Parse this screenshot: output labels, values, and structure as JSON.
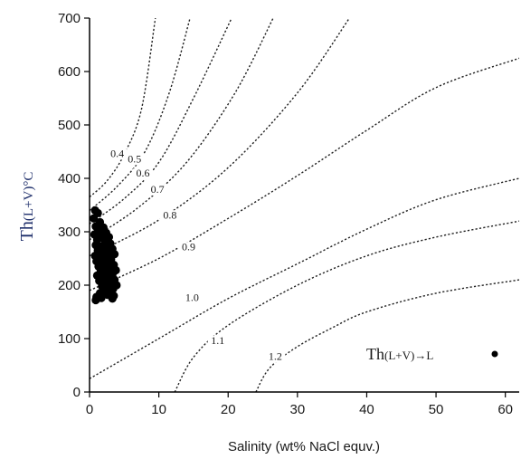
{
  "chart_data": {
    "type": "scatter",
    "xlabel": "Salinity (wt% NaCl equv.)",
    "ylabel": "Th(L+V)°C",
    "ylabel_parts": {
      "main": "Th",
      "sub": "(L+V)",
      "unit": "°C"
    },
    "xlim": [
      0,
      62
    ],
    "ylim": [
      0,
      700
    ],
    "x_ticks": [
      0,
      10,
      20,
      30,
      40,
      50,
      60
    ],
    "y_ticks": [
      0,
      100,
      200,
      300,
      400,
      500,
      600,
      700
    ],
    "grid": false,
    "legend": {
      "position": "bottom-right",
      "main": "Th",
      "sub": "(L+V)→L",
      "marker": "filled-circle"
    },
    "series": [
      {
        "points": [
          [
            0.8,
            340
          ],
          [
            1.2,
            335
          ],
          [
            0.6,
            325
          ],
          [
            1.5,
            318
          ],
          [
            0.9,
            310
          ],
          [
            2.0,
            308
          ],
          [
            1.3,
            300
          ],
          [
            2.4,
            298
          ],
          [
            0.7,
            295
          ],
          [
            1.8,
            292
          ],
          [
            2.8,
            290
          ],
          [
            1.1,
            285
          ],
          [
            2.2,
            282
          ],
          [
            3.0,
            278
          ],
          [
            0.9,
            275
          ],
          [
            1.6,
            272
          ],
          [
            2.6,
            270
          ],
          [
            3.3,
            268
          ],
          [
            1.2,
            265
          ],
          [
            2.0,
            262
          ],
          [
            2.9,
            260
          ],
          [
            3.6,
            258
          ],
          [
            0.8,
            255
          ],
          [
            1.5,
            252
          ],
          [
            2.4,
            250
          ],
          [
            3.1,
            248
          ],
          [
            1.0,
            245
          ],
          [
            1.9,
            242
          ],
          [
            2.7,
            240
          ],
          [
            3.5,
            238
          ],
          [
            1.3,
            235
          ],
          [
            2.2,
            232
          ],
          [
            3.0,
            230
          ],
          [
            3.8,
            228
          ],
          [
            1.6,
            225
          ],
          [
            2.5,
            222
          ],
          [
            3.3,
            220
          ],
          [
            1.1,
            218
          ],
          [
            2.0,
            215
          ],
          [
            2.8,
            212
          ],
          [
            3.6,
            210
          ],
          [
            1.4,
            208
          ],
          [
            2.3,
            205
          ],
          [
            3.1,
            202
          ],
          [
            3.9,
            200
          ],
          [
            1.8,
            198
          ],
          [
            2.6,
            195
          ],
          [
            3.4,
            193
          ],
          [
            2.1,
            190
          ],
          [
            3.0,
            188
          ],
          [
            1.5,
            185
          ],
          [
            2.6,
            182
          ],
          [
            3.5,
            180
          ],
          [
            1.0,
            178
          ],
          [
            1.7,
            176
          ],
          [
            3.3,
            175
          ],
          [
            0.9,
            172
          ]
        ]
      }
    ],
    "density_curves": [
      {
        "label": "0.4",
        "points": [
          [
            0,
            365
          ],
          [
            2.5,
            395
          ],
          [
            5,
            445
          ],
          [
            7.5,
            530
          ],
          [
            9.5,
            700
          ]
        ]
      },
      {
        "label": "0.5",
        "points": [
          [
            0,
            340
          ],
          [
            4,
            385
          ],
          [
            8,
            450
          ],
          [
            11.5,
            560
          ],
          [
            14.5,
            700
          ]
        ]
      },
      {
        "label": "0.6",
        "points": [
          [
            0,
            315
          ],
          [
            5,
            362
          ],
          [
            10,
            430
          ],
          [
            15,
            550
          ],
          [
            20.5,
            700
          ]
        ]
      },
      {
        "label": "0.7",
        "points": [
          [
            0,
            285
          ],
          [
            7,
            345
          ],
          [
            14,
            430
          ],
          [
            21,
            560
          ],
          [
            26.5,
            700
          ]
        ]
      },
      {
        "label": "0.8",
        "points": [
          [
            0,
            255
          ],
          [
            10,
            322
          ],
          [
            20,
            420
          ],
          [
            30,
            560
          ],
          [
            37.5,
            700
          ]
        ]
      },
      {
        "label": "0.9",
        "points": [
          [
            0,
            190
          ],
          [
            10,
            250
          ],
          [
            20,
            325
          ],
          [
            30,
            405
          ],
          [
            40,
            490
          ],
          [
            50,
            570
          ],
          [
            62,
            625
          ]
        ]
      },
      {
        "label": "1.0",
        "points": [
          [
            0,
            25
          ],
          [
            10,
            100
          ],
          [
            20,
            175
          ],
          [
            30,
            240
          ],
          [
            40,
            305
          ],
          [
            50,
            360
          ],
          [
            62,
            400
          ]
        ]
      },
      {
        "label": "1.1",
        "points": [
          [
            12.3,
            0
          ],
          [
            15,
            65
          ],
          [
            20,
            125
          ],
          [
            30,
            200
          ],
          [
            40,
            255
          ],
          [
            50,
            290
          ],
          [
            62,
            320
          ]
        ]
      },
      {
        "label": "1.2",
        "points": [
          [
            24,
            0
          ],
          [
            26,
            45
          ],
          [
            30,
            85
          ],
          [
            35,
            120
          ],
          [
            40,
            150
          ],
          [
            50,
            185
          ],
          [
            62,
            210
          ]
        ]
      }
    ],
    "curve_labels": [
      {
        "text": "0.4",
        "x": 4.0,
        "y": 440
      },
      {
        "text": "0.5",
        "x": 6.5,
        "y": 430
      },
      {
        "text": "0.6",
        "x": 7.7,
        "y": 403
      },
      {
        "text": "0.7",
        "x": 9.8,
        "y": 373
      },
      {
        "text": "0.8",
        "x": 11.6,
        "y": 325
      },
      {
        "text": "0.9",
        "x": 14.3,
        "y": 265
      },
      {
        "text": "1.0",
        "x": 14.8,
        "y": 170
      },
      {
        "text": "1.1",
        "x": 18.5,
        "y": 90
      },
      {
        "text": "1.2",
        "x": 26.8,
        "y": 60
      }
    ]
  }
}
